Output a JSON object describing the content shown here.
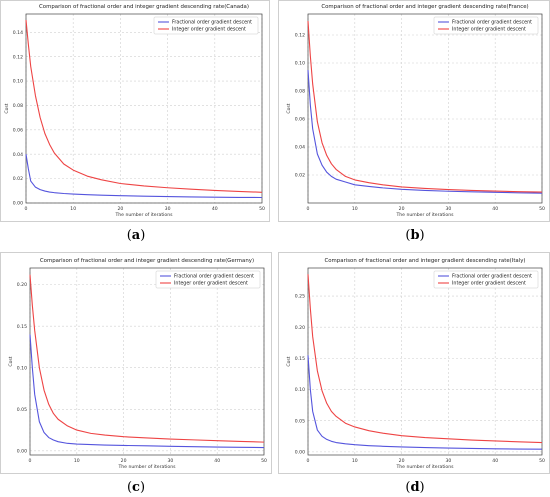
{
  "colors": {
    "fractional": "#5555dd",
    "integer": "#ee4444",
    "grid": "#d0d0d0"
  },
  "chart_data": [
    {
      "type": "line",
      "title": "Comparison of fractional order and integer gradient descending rate(Canada)",
      "xlabel": "The number of iterations",
      "ylabel": "Cost",
      "xlim": [
        0,
        50
      ],
      "ylim": [
        0,
        0.155
      ],
      "xticks": [
        "0",
        "10",
        "20",
        "30",
        "40",
        "50"
      ],
      "xtick_values": [
        0,
        10,
        20,
        30,
        40,
        50
      ],
      "yticks": [
        "0.00",
        "0.02",
        "0.04",
        "0.06",
        "0.08",
        "0.10",
        "0.12",
        "0.14"
      ],
      "ytick_values": [
        0,
        0.02,
        0.04,
        0.06,
        0.08,
        0.1,
        0.12,
        0.14
      ],
      "grid": true,
      "legend_position": "top-right",
      "x": [
        0,
        0.5,
        1,
        2,
        3,
        4,
        5,
        6,
        8,
        10,
        13,
        16,
        20,
        25,
        30,
        35,
        40,
        45,
        50
      ],
      "series": [
        {
          "name": "Fractional order gradient descent",
          "values": [
            0.04,
            0.028,
            0.018,
            0.013,
            0.011,
            0.0098,
            0.009,
            0.0085,
            0.0078,
            0.0073,
            0.0068,
            0.0064,
            0.006,
            0.0056,
            0.0053,
            0.005,
            0.0048,
            0.0046,
            0.0045
          ]
        },
        {
          "name": "Integer order gradient descent",
          "values": [
            0.15,
            0.13,
            0.112,
            0.088,
            0.07,
            0.057,
            0.048,
            0.041,
            0.032,
            0.027,
            0.022,
            0.019,
            0.016,
            0.014,
            0.0125,
            0.0113,
            0.0103,
            0.0095,
            0.0088
          ]
        }
      ]
    },
    {
      "type": "line",
      "title": "Comparison of fractional order and integer gradient descending rate(France)",
      "xlabel": "The number of iterations",
      "ylabel": "Cost",
      "xlim": [
        0,
        50
      ],
      "ylim": [
        0,
        0.135
      ],
      "xticks": [
        "0",
        "10",
        "20",
        "30",
        "40",
        "50"
      ],
      "xtick_values": [
        0,
        10,
        20,
        30,
        40,
        50
      ],
      "yticks": [
        "0.02",
        "0.04",
        "0.06",
        "0.08",
        "0.10",
        "0.12"
      ],
      "ytick_values": [
        0.02,
        0.04,
        0.06,
        0.08,
        0.1,
        0.12
      ],
      "grid": true,
      "legend_position": "top-right",
      "x": [
        0,
        0.5,
        1,
        2,
        3,
        4,
        5,
        6,
        8,
        10,
        13,
        16,
        20,
        25,
        30,
        35,
        40,
        45,
        50
      ],
      "series": [
        {
          "name": "Fractional order gradient descent",
          "values": [
            0.095,
            0.07,
            0.053,
            0.035,
            0.027,
            0.022,
            0.019,
            0.017,
            0.015,
            0.013,
            0.0118,
            0.0108,
            0.0098,
            0.009,
            0.0084,
            0.008,
            0.0076,
            0.0073,
            0.007
          ]
        },
        {
          "name": "Integer order gradient descent",
          "values": [
            0.13,
            0.105,
            0.085,
            0.058,
            0.043,
            0.034,
            0.028,
            0.024,
            0.019,
            0.0165,
            0.0145,
            0.013,
            0.0115,
            0.0104,
            0.0096,
            0.009,
            0.0085,
            0.0081,
            0.0078
          ]
        }
      ]
    },
    {
      "type": "line",
      "title": "Comparison of fractional order and integer gradient descending rate(Germany)",
      "xlabel": "The number of iterations",
      "ylabel": "Cost",
      "xlim": [
        0,
        50
      ],
      "ylim": [
        -0.005,
        0.22
      ],
      "xticks": [
        "0",
        "10",
        "20",
        "30",
        "40",
        "50"
      ],
      "xtick_values": [
        0,
        10,
        20,
        30,
        40,
        50
      ],
      "yticks": [
        "0.00",
        "0.05",
        "0.10",
        "0.15",
        "0.20"
      ],
      "ytick_values": [
        0,
        0.05,
        0.1,
        0.15,
        0.2
      ],
      "grid": true,
      "legend_position": "top-right",
      "x": [
        0,
        0.5,
        1,
        2,
        3,
        4,
        5,
        6,
        8,
        10,
        13,
        16,
        20,
        25,
        30,
        35,
        40,
        45,
        50
      ],
      "series": [
        {
          "name": "Fractional order gradient descent",
          "values": [
            0.14,
            0.1,
            0.068,
            0.035,
            0.022,
            0.016,
            0.013,
            0.011,
            0.009,
            0.0082,
            0.0075,
            0.007,
            0.0065,
            0.006,
            0.0055,
            0.005,
            0.0046,
            0.0043,
            0.004
          ]
        },
        {
          "name": "Integer order gradient descent",
          "values": [
            0.212,
            0.175,
            0.145,
            0.1,
            0.073,
            0.056,
            0.045,
            0.038,
            0.03,
            0.025,
            0.021,
            0.019,
            0.017,
            0.0155,
            0.0142,
            0.0132,
            0.0122,
            0.0113,
            0.0105
          ]
        }
      ]
    },
    {
      "type": "line",
      "title": "Comparison of fractional order and integer gradient descending rate(Italy)",
      "xlabel": "The number of iterations",
      "ylabel": "Cost",
      "xlim": [
        0,
        50
      ],
      "ylim": [
        -0.005,
        0.295
      ],
      "xticks": [
        "0",
        "10",
        "20",
        "30",
        "40",
        "50"
      ],
      "xtick_values": [
        0,
        10,
        20,
        30,
        40,
        50
      ],
      "yticks": [
        "0.00",
        "0.05",
        "0.10",
        "0.15",
        "0.20",
        "0.25"
      ],
      "ytick_values": [
        0,
        0.05,
        0.1,
        0.15,
        0.2,
        0.25
      ],
      "grid": true,
      "legend_position": "top-right",
      "x": [
        0,
        0.5,
        1,
        2,
        3,
        4,
        5,
        6,
        8,
        10,
        13,
        16,
        20,
        25,
        30,
        35,
        40,
        45,
        50
      ],
      "series": [
        {
          "name": "Fractional order gradient descent",
          "values": [
            0.155,
            0.1,
            0.065,
            0.035,
            0.025,
            0.02,
            0.017,
            0.015,
            0.013,
            0.0115,
            0.01,
            0.009,
            0.008,
            0.007,
            0.0062,
            0.0055,
            0.005,
            0.0046,
            0.0043
          ]
        },
        {
          "name": "Integer order gradient descent",
          "values": [
            0.285,
            0.23,
            0.185,
            0.13,
            0.098,
            0.078,
            0.065,
            0.057,
            0.046,
            0.04,
            0.034,
            0.03,
            0.026,
            0.023,
            0.021,
            0.019,
            0.0175,
            0.0162,
            0.015
          ]
        }
      ]
    }
  ],
  "captions": [
    "a",
    "b",
    "c",
    "d"
  ]
}
